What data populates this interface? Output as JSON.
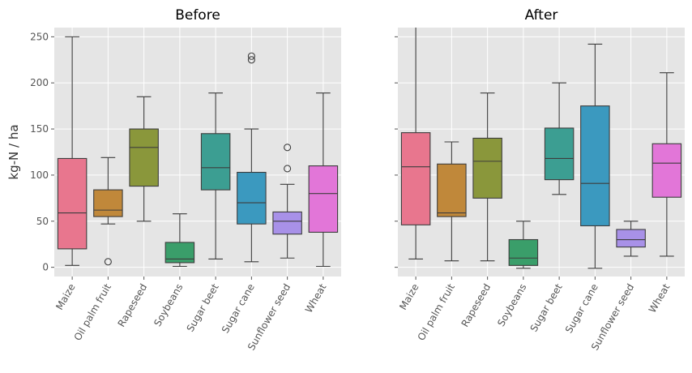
{
  "chart_data": [
    {
      "type": "box",
      "title": "Before",
      "ylabel": "kg-N / ha",
      "xlabel": "",
      "ylim": [
        -10,
        260
      ],
      "yticks": [
        0,
        50,
        100,
        150,
        200,
        250
      ],
      "grid": true,
      "categories": [
        "Maize",
        "Oil palm fruit",
        "Rapeseed",
        "Soybeans",
        "Sugar beet",
        "Sugar cane",
        "Sunflower seed",
        "Wheat"
      ],
      "colors": [
        "#e8768e",
        "#c0883a",
        "#8a973b",
        "#3a9e6a",
        "#3c9e92",
        "#3b99bf",
        "#a891e8",
        "#e276d8"
      ],
      "boxes": [
        {
          "min": 2,
          "q1": 20,
          "median": 59,
          "q3": 118,
          "max": 250,
          "outliers": []
        },
        {
          "min": 47,
          "q1": 55,
          "median": 62,
          "q3": 84,
          "max": 119,
          "outliers": [
            6
          ]
        },
        {
          "min": 50,
          "q1": 88,
          "median": 130,
          "q3": 150,
          "max": 185,
          "outliers": []
        },
        {
          "min": 1,
          "q1": 5,
          "median": 9,
          "q3": 27,
          "max": 58,
          "outliers": []
        },
        {
          "min": 9,
          "q1": 84,
          "median": 108,
          "q3": 145,
          "max": 189,
          "outliers": []
        },
        {
          "min": 6,
          "q1": 47,
          "median": 70,
          "q3": 103,
          "max": 150,
          "outliers": [
            225,
            229
          ]
        },
        {
          "min": 10,
          "q1": 36,
          "median": 50,
          "q3": 60,
          "max": 90,
          "outliers": [
            107,
            130
          ]
        },
        {
          "min": 1,
          "q1": 38,
          "median": 80,
          "q3": 110,
          "max": 189,
          "outliers": []
        }
      ]
    },
    {
      "type": "box",
      "title": "After",
      "ylabel": "",
      "xlabel": "",
      "ylim": [
        -10,
        260
      ],
      "yticks": [
        0,
        50,
        100,
        150,
        200,
        250
      ],
      "grid": true,
      "categories": [
        "Maize",
        "Oil palm fruit",
        "Rapeseed",
        "Soybeans",
        "Sugar beet",
        "Sugar cane",
        "Sunflower seed",
        "Wheat"
      ],
      "colors": [
        "#e8768e",
        "#c0883a",
        "#8a973b",
        "#3a9e6a",
        "#3c9e92",
        "#3b99bf",
        "#a891e8",
        "#e276d8"
      ],
      "boxes": [
        {
          "min": 9,
          "q1": 46,
          "median": 109,
          "q3": 146,
          "max": 261,
          "outliers": []
        },
        {
          "min": 7,
          "q1": 55,
          "median": 59,
          "q3": 112,
          "max": 136,
          "outliers": []
        },
        {
          "min": 7,
          "q1": 75,
          "median": 115,
          "q3": 140,
          "max": 189,
          "outliers": []
        },
        {
          "min": -1,
          "q1": 2,
          "median": 10,
          "q3": 30,
          "max": 50,
          "outliers": []
        },
        {
          "min": 79,
          "q1": 95,
          "median": 118,
          "q3": 151,
          "max": 200,
          "outliers": []
        },
        {
          "min": -1,
          "q1": 45,
          "median": 91,
          "q3": 175,
          "max": 242,
          "outliers": []
        },
        {
          "min": 12,
          "q1": 22,
          "median": 30,
          "q3": 41,
          "max": 50,
          "outliers": []
        },
        {
          "min": 12,
          "q1": 76,
          "median": 113,
          "q3": 134,
          "max": 211,
          "outliers": []
        }
      ]
    }
  ]
}
